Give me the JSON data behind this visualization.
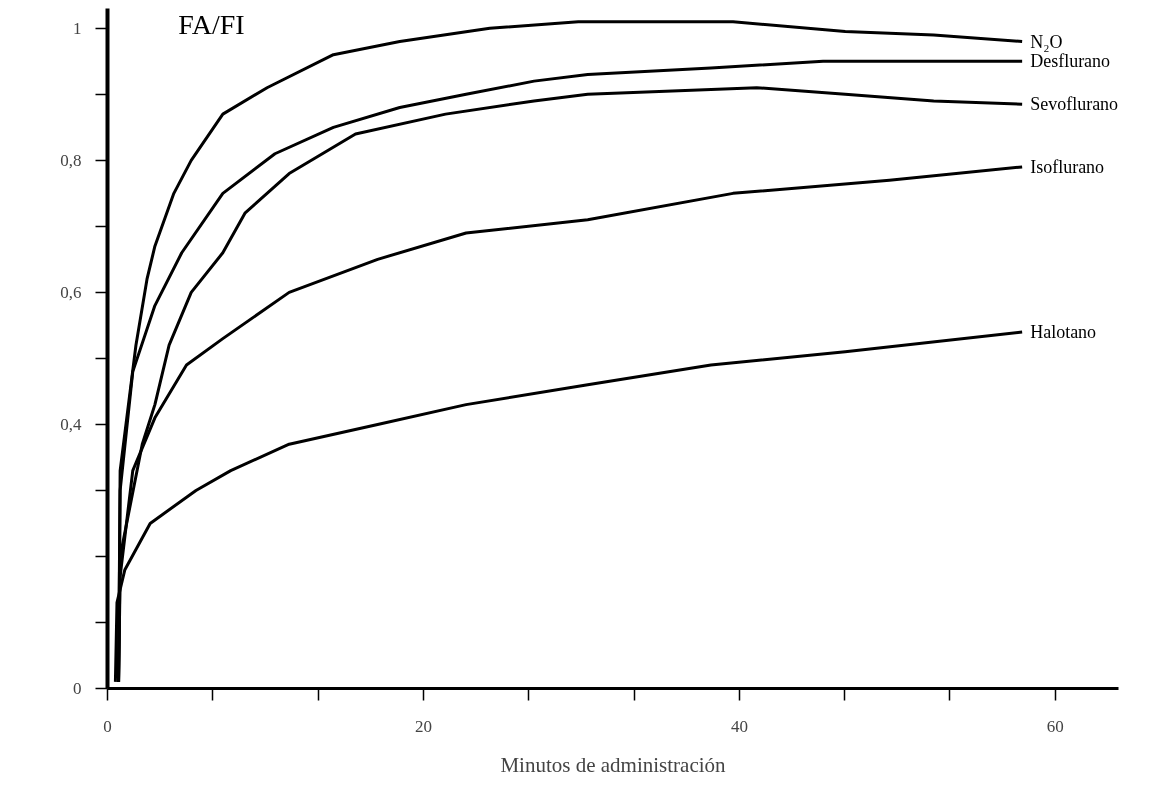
{
  "chart_data": {
    "type": "line",
    "ylabel": "FA/FI",
    "xlabel": "Minutos de administración",
    "xlim": [
      0,
      64
    ],
    "xticks": [
      0,
      {
        "value": 6.67,
        "label": null
      },
      {
        "value": 13.33,
        "label": null
      },
      20,
      {
        "value": 26.67,
        "label": null
      },
      {
        "value": 33.33,
        "label": null
      },
      40,
      {
        "value": 46.67,
        "label": null
      },
      {
        "value": 53.33,
        "label": null
      },
      60
    ],
    "ylim": [
      0,
      1.03
    ],
    "yticks": [
      0,
      {
        "value": 0.1,
        "label": null
      },
      {
        "value": 0.2,
        "label": null
      },
      {
        "value": 0.3,
        "label": null
      },
      {
        "value": 0.4,
        "label": "0,4"
      },
      {
        "value": 0.5,
        "label": null
      },
      {
        "value": 0.6,
        "label": "0,6"
      },
      {
        "value": 0.7,
        "label": null
      },
      {
        "value": 0.8,
        "label": "0,8"
      },
      {
        "value": 0.9,
        "label": null
      },
      1
    ],
    "grid": false,
    "legend": false,
    "line_style": "solid",
    "series": [
      {
        "name": "N₂O",
        "color": "#000000",
        "x": [
          0.7,
          0.8,
          1.8,
          2.5,
          3.0,
          4.2,
          5.3,
          7.3,
          10.1,
          14.3,
          18.5,
          24.2,
          29.8,
          39.6,
          46.7,
          52.3,
          57.9
        ],
        "values": [
          0.01,
          0.33,
          0.52,
          0.62,
          0.67,
          0.75,
          0.8,
          0.87,
          0.91,
          0.96,
          0.98,
          1.0,
          1.01,
          1.01,
          0.995,
          0.99,
          0.98
        ]
      },
      {
        "name": "Desflurano",
        "color": "#000000",
        "x": [
          0.7,
          0.8,
          1.6,
          3.0,
          4.7,
          7.3,
          10.6,
          14.3,
          18.5,
          22.7,
          27,
          30.4,
          38.2,
          45.3,
          57.9
        ],
        "values": [
          0.01,
          0.3,
          0.48,
          0.58,
          0.66,
          0.75,
          0.81,
          0.85,
          0.88,
          0.9,
          0.92,
          0.93,
          0.94,
          0.95,
          0.95
        ]
      },
      {
        "name": "Sevoflurano",
        "color": "#000000",
        "x": [
          0.7,
          0.8,
          2.2,
          3.0,
          3.9,
          5.3,
          7.3,
          8.7,
          11.5,
          15.7,
          21.4,
          27,
          30.4,
          41.1,
          46.7,
          52.3,
          57.9
        ],
        "values": [
          0.01,
          0.2,
          0.37,
          0.43,
          0.52,
          0.6,
          0.66,
          0.72,
          0.78,
          0.84,
          0.87,
          0.89,
          0.9,
          0.91,
          0.9,
          0.89,
          0.885
        ]
      },
      {
        "name": "Isoflurano",
        "color": "#000000",
        "x": [
          0.7,
          0.8,
          1.6,
          3.0,
          5.0,
          7.3,
          11.5,
          17.1,
          22.7,
          30.4,
          39.6,
          49.5,
          57.9
        ],
        "values": [
          0.01,
          0.17,
          0.33,
          0.41,
          0.49,
          0.53,
          0.6,
          0.65,
          0.69,
          0.71,
          0.75,
          0.77,
          0.79
        ]
      },
      {
        "name": "Halotano",
        "color": "#000000",
        "x": [
          0.5,
          0.6,
          1.1,
          2.7,
          5.6,
          7.8,
          11.5,
          17.1,
          22.7,
          30.4,
          38.2,
          46.7,
          57.9
        ],
        "values": [
          0.01,
          0.13,
          0.18,
          0.25,
          0.3,
          0.33,
          0.37,
          0.4,
          0.43,
          0.46,
          0.49,
          0.51,
          0.54
        ]
      }
    ]
  }
}
